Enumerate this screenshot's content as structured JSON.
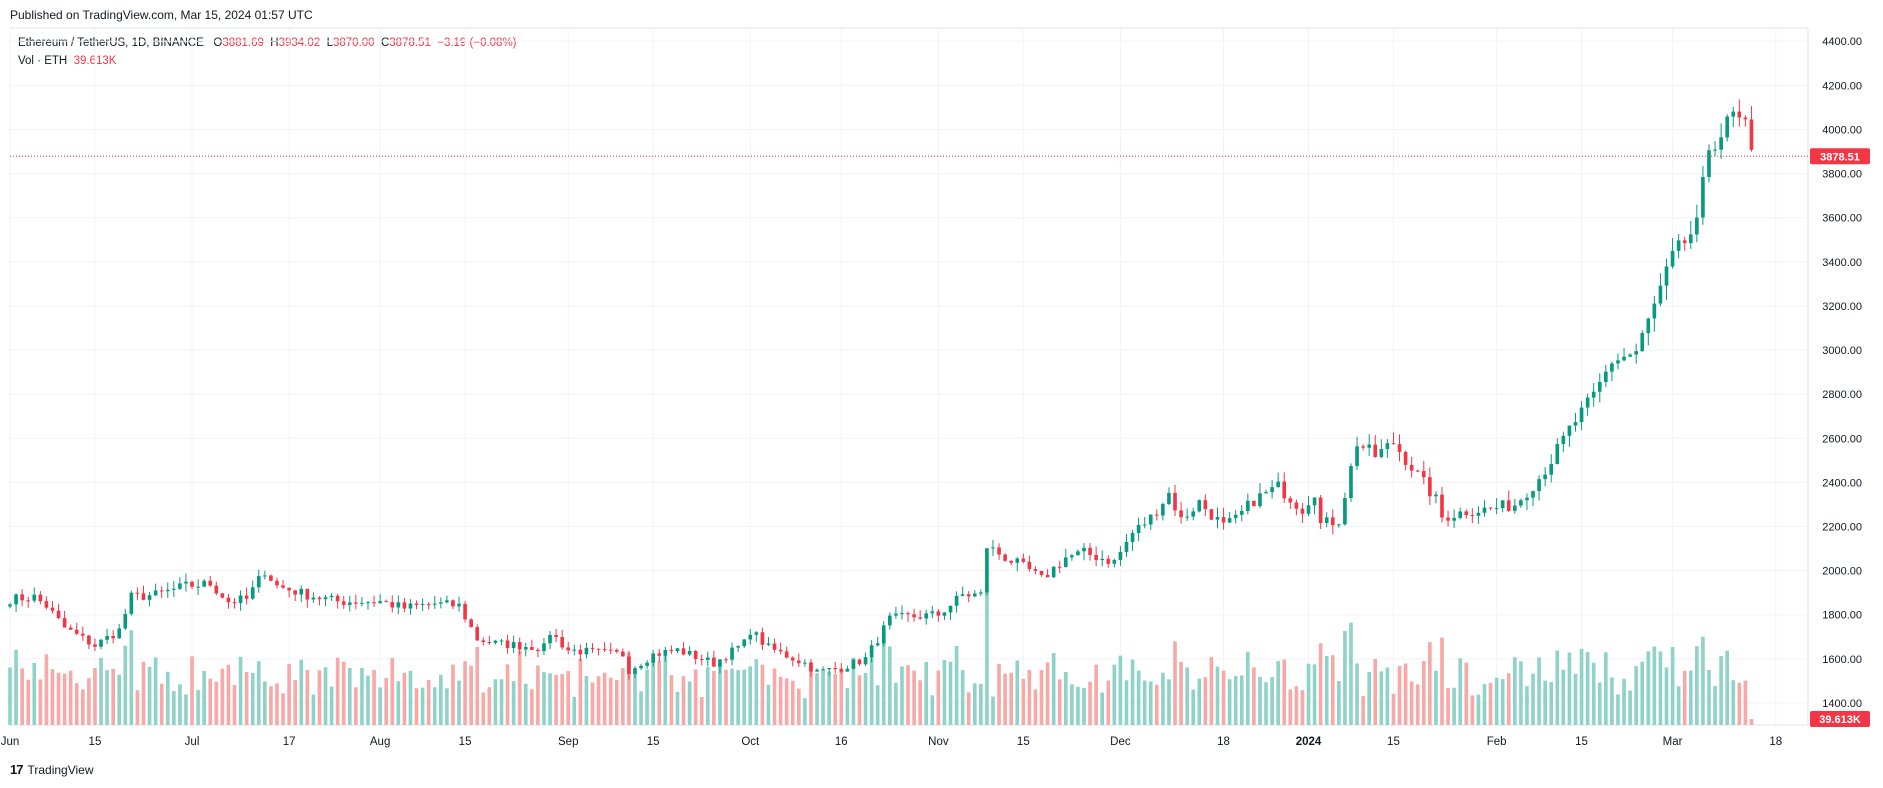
{
  "header": {
    "published": "Published on TradingView.com, Mar 15, 2024 01:57 UTC"
  },
  "legend": {
    "symbol": "Ethereum / TetherUS, 1D, BINANCE",
    "open_label": "O",
    "open": "3881.69",
    "high_label": "H",
    "high": "3934.02",
    "low_label": "L",
    "low": "3870.00",
    "close_label": "C",
    "close": "3878.51",
    "change": "−3.19 (−0.08%)",
    "volume_label": "Vol · ETH",
    "volume": "39.613K"
  },
  "footer": {
    "brand": "TradingView",
    "logo_glyph": "17"
  },
  "colors": {
    "up": "#089981",
    "down": "#f23645",
    "up_vol": "#8fd3c8",
    "down_vol": "#f7a9a7",
    "grid": "#f0f3fa",
    "price_line": "#f23645"
  },
  "chart_data": {
    "type": "candlestick",
    "symbol": "Ethereum / TetherUS",
    "interval": "1D",
    "exchange": "BINANCE",
    "last_price_label": "3878.51",
    "last_volume_label": "39.613K",
    "y_axis_ticks": [
      "1400.00",
      "1600.00",
      "1800.00",
      "2000.00",
      "2200.00",
      "2400.00",
      "2600.00",
      "2800.00",
      "3000.00",
      "3200.00",
      "3400.00",
      "3600.00",
      "3800.00",
      "4000.00",
      "4200.00",
      "4400.00"
    ],
    "ylim": [
      1300,
      4460
    ],
    "x_axis_ticks": [
      {
        "label": "Jun",
        "date": "2023-06-01"
      },
      {
        "label": "15",
        "date": "2023-06-15"
      },
      {
        "label": "Jul",
        "date": "2023-07-01"
      },
      {
        "label": "17",
        "date": "2023-07-17"
      },
      {
        "label": "Aug",
        "date": "2023-08-01"
      },
      {
        "label": "15",
        "date": "2023-08-15"
      },
      {
        "label": "Sep",
        "date": "2023-09-01"
      },
      {
        "label": "15",
        "date": "2023-09-15"
      },
      {
        "label": "Oct",
        "date": "2023-10-01"
      },
      {
        "label": "16",
        "date": "2023-10-16"
      },
      {
        "label": "Nov",
        "date": "2023-11-01"
      },
      {
        "label": "15",
        "date": "2023-11-15"
      },
      {
        "label": "Dec",
        "date": "2023-12-01"
      },
      {
        "label": "18",
        "date": "2023-12-18"
      },
      {
        "label": "2024",
        "date": "2024-01-01",
        "bold": true
      },
      {
        "label": "15",
        "date": "2024-01-15"
      },
      {
        "label": "Feb",
        "date": "2024-02-01"
      },
      {
        "label": "15",
        "date": "2024-02-15"
      },
      {
        "label": "Mar",
        "date": "2024-03-01"
      },
      {
        "label": "18",
        "date": "2024-03-18"
      }
    ],
    "xlim": [
      "2023-06-01",
      "2024-03-22"
    ],
    "price_path": [
      [
        "2023-06-01",
        1870
      ],
      [
        "2023-06-05",
        1880
      ],
      [
        "2023-06-07",
        1840
      ],
      [
        "2023-06-10",
        1740
      ],
      [
        "2023-06-15",
        1660
      ],
      [
        "2023-06-19",
        1730
      ],
      [
        "2023-06-21",
        1880
      ],
      [
        "2023-06-25",
        1890
      ],
      [
        "2023-06-30",
        1930
      ],
      [
        "2023-07-04",
        1940
      ],
      [
        "2023-07-07",
        1860
      ],
      [
        "2023-07-10",
        1870
      ],
      [
        "2023-07-13",
        2000
      ],
      [
        "2023-07-15",
        1930
      ],
      [
        "2023-07-20",
        1890
      ],
      [
        "2023-07-25",
        1860
      ],
      [
        "2023-08-01",
        1860
      ],
      [
        "2023-08-05",
        1830
      ],
      [
        "2023-08-10",
        1850
      ],
      [
        "2023-08-14",
        1840
      ],
      [
        "2023-08-17",
        1690
      ],
      [
        "2023-08-20",
        1670
      ],
      [
        "2023-08-28",
        1650
      ],
      [
        "2023-08-29",
        1720
      ],
      [
        "2023-09-01",
        1640
      ],
      [
        "2023-09-05",
        1630
      ],
      [
        "2023-09-10",
        1620
      ],
      [
        "2023-09-11",
        1550
      ],
      [
        "2023-09-15",
        1620
      ],
      [
        "2023-09-19",
        1640
      ],
      [
        "2023-09-25",
        1580
      ],
      [
        "2023-09-30",
        1670
      ],
      [
        "2023-10-01",
        1730
      ],
      [
        "2023-10-04",
        1650
      ],
      [
        "2023-10-10",
        1580
      ],
      [
        "2023-10-12",
        1540
      ],
      [
        "2023-10-16",
        1560
      ],
      [
        "2023-10-20",
        1600
      ],
      [
        "2023-10-24",
        1780
      ],
      [
        "2023-10-27",
        1790
      ],
      [
        "2023-11-01",
        1800
      ],
      [
        "2023-11-05",
        1890
      ],
      [
        "2023-11-08",
        1890
      ],
      [
        "2023-11-09",
        2110
      ],
      [
        "2023-11-12",
        2060
      ],
      [
        "2023-11-16",
        2000
      ],
      [
        "2023-11-18",
        1960
      ],
      [
        "2023-11-22",
        2060
      ],
      [
        "2023-11-25",
        2080
      ],
      [
        "2023-11-30",
        2040
      ],
      [
        "2023-12-03",
        2170
      ],
      [
        "2023-12-06",
        2240
      ],
      [
        "2023-12-09",
        2350
      ],
      [
        "2023-12-11",
        2230
      ],
      [
        "2023-12-14",
        2310
      ],
      [
        "2023-12-18",
        2200
      ],
      [
        "2023-12-20",
        2230
      ],
      [
        "2023-12-23",
        2320
      ],
      [
        "2023-12-27",
        2380
      ],
      [
        "2023-12-31",
        2280
      ],
      [
        "2024-01-02",
        2360
      ],
      [
        "2024-01-03",
        2210
      ],
      [
        "2024-01-06",
        2230
      ],
      [
        "2024-01-09",
        2580
      ],
      [
        "2024-01-12",
        2520
      ],
      [
        "2024-01-15",
        2580
      ],
      [
        "2024-01-18",
        2470
      ],
      [
        "2024-01-22",
        2320
      ],
      [
        "2024-01-23",
        2240
      ],
      [
        "2024-01-27",
        2270
      ],
      [
        "2024-01-31",
        2280
      ],
      [
        "2024-02-04",
        2300
      ],
      [
        "2024-02-08",
        2420
      ],
      [
        "2024-02-10",
        2500
      ],
      [
        "2024-02-13",
        2640
      ],
      [
        "2024-02-17",
        2790
      ],
      [
        "2024-02-20",
        2950
      ],
      [
        "2024-02-24",
        2990
      ],
      [
        "2024-02-27",
        3200
      ],
      [
        "2024-03-01",
        3420
      ],
      [
        "2024-03-03",
        3490
      ],
      [
        "2024-03-05",
        3560
      ],
      [
        "2024-03-07",
        3920
      ],
      [
        "2024-03-09",
        3980
      ],
      [
        "2024-03-11",
        4060
      ],
      [
        "2024-03-13",
        4000
      ],
      [
        "2024-03-14",
        3880
      ]
    ]
  }
}
